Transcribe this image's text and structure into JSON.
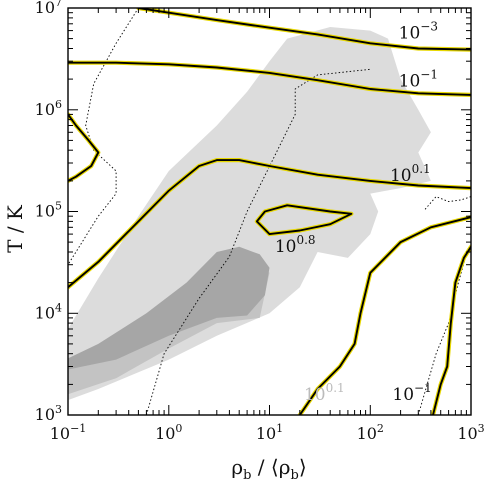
{
  "chart_data": {
    "type": "contour",
    "xlabel_main": "ρ",
    "xlabel_sub": "b",
    "xlabel_sep": " / ",
    "xlabel_open": "⟨",
    "xlabel_close": "⟩",
    "ylabel": "T / K",
    "x_scale": "log",
    "y_scale": "log",
    "xlim": [
      0.1,
      1000
    ],
    "ylim": [
      1000,
      10000000
    ],
    "x_ticks": [
      {
        "value": 0.1,
        "base": "10",
        "exp": "−1"
      },
      {
        "value": 1,
        "base": "10",
        "exp": "0"
      },
      {
        "value": 10,
        "base": "10",
        "exp": "1"
      },
      {
        "value": 100,
        "base": "10",
        "exp": "2"
      },
      {
        "value": 1000,
        "base": "10",
        "exp": "3"
      }
    ],
    "y_ticks": [
      {
        "value": 1000,
        "base": "10",
        "exp": "3"
      },
      {
        "value": 10000,
        "base": "10",
        "exp": "4"
      },
      {
        "value": 100000,
        "base": "10",
        "exp": "5"
      },
      {
        "value": 1000000,
        "base": "10",
        "exp": "6"
      },
      {
        "value": 10000000,
        "base": "10",
        "exp": "7"
      }
    ],
    "grid": false,
    "colors": {
      "contour_line": "#000000",
      "contour_highlight": "#e8d800",
      "fill_light": "#dcdcdc",
      "fill_medium": "#c3c3c3",
      "fill_dark": "#a6a6a6",
      "dotted": "#000000"
    },
    "contour_labels": [
      {
        "base": "10",
        "exp": "−3",
        "x": 300,
        "y": 5000000,
        "shade": "dark"
      },
      {
        "base": "10",
        "exp": "−1",
        "x": 300,
        "y": 1700000,
        "shade": "dark"
      },
      {
        "base": "10",
        "exp": "0.1",
        "x": 250,
        "y": 200000,
        "shade": "dark"
      },
      {
        "base": "10",
        "exp": "0.8",
        "x": 18,
        "y": 40000,
        "shade": "dark"
      },
      {
        "base": "10",
        "exp": "0.1",
        "x": 35,
        "y": 1400,
        "shade": "light"
      },
      {
        "base": "10",
        "exp": "−1",
        "x": 260,
        "y": 1400,
        "shade": "dark"
      }
    ],
    "contours": [
      {
        "name": "level 10^-3",
        "points": [
          [
            0.5,
            10000000
          ],
          [
            1,
            9000000
          ],
          [
            3,
            7600000
          ],
          [
            10,
            6400000
          ],
          [
            30,
            5500000
          ],
          [
            100,
            4500000
          ],
          [
            300,
            4000000
          ],
          [
            1000,
            3900000
          ]
        ]
      },
      {
        "name": "level 10^-1 (upper)",
        "points": [
          [
            0.1,
            2900000
          ],
          [
            0.3,
            2900000
          ],
          [
            1,
            2800000
          ],
          [
            3,
            2600000
          ],
          [
            10,
            2300000
          ],
          [
            30,
            1950000
          ],
          [
            100,
            1600000
          ],
          [
            300,
            1450000
          ],
          [
            1000,
            1400000
          ]
        ]
      },
      {
        "name": "level 10^0.1 (upper)",
        "points": [
          [
            0.1,
            18000
          ],
          [
            0.2,
            32000
          ],
          [
            0.5,
            80000
          ],
          [
            1,
            160000
          ],
          [
            2,
            280000
          ],
          [
            3,
            320000
          ],
          [
            5,
            320000
          ],
          [
            10,
            280000
          ],
          [
            30,
            230000
          ],
          [
            100,
            200000
          ],
          [
            300,
            180000
          ],
          [
            1000,
            170000
          ]
        ]
      },
      {
        "name": "level 10^0.8",
        "points": [
          [
            7.5,
            80000
          ],
          [
            9,
            100000
          ],
          [
            15,
            115000
          ],
          [
            40,
            100000
          ],
          [
            65,
            95000
          ],
          [
            40,
            75000
          ],
          [
            20,
            65000
          ],
          [
            10,
            60000
          ],
          [
            7.5,
            80000
          ]
        ]
      },
      {
        "name": "level 10^0.1 (lower right)",
        "points": [
          [
            20,
            1000
          ],
          [
            30,
            1800
          ],
          [
            50,
            3000
          ],
          [
            70,
            5000
          ],
          [
            80,
            10000
          ],
          [
            100,
            25000
          ],
          [
            200,
            50000
          ],
          [
            400,
            70000
          ],
          [
            1000,
            88000
          ]
        ]
      },
      {
        "name": "level 10^-1 (lower right)",
        "points": [
          [
            420,
            1000
          ],
          [
            500,
            2000
          ],
          [
            580,
            3000
          ],
          [
            630,
            8000
          ],
          [
            700,
            20000
          ],
          [
            850,
            35000
          ],
          [
            1000,
            45000
          ]
        ]
      },
      {
        "name": "level 10^0.1 (left loop)",
        "points": [
          [
            0.1,
            900000
          ],
          [
            0.12,
            700000
          ],
          [
            0.16,
            500000
          ],
          [
            0.2,
            380000
          ],
          [
            0.17,
            280000
          ],
          [
            0.12,
            220000
          ],
          [
            0.1,
            200000
          ]
        ]
      }
    ],
    "dotted_curves": [
      {
        "points": [
          [
            0.5,
            10000000
          ],
          [
            0.3,
            4500000
          ],
          [
            0.18,
            1800000
          ],
          [
            0.15,
            700000
          ],
          [
            0.18,
            400000
          ],
          [
            0.3,
            250000
          ],
          [
            0.3,
            150000
          ],
          [
            0.2,
            90000
          ],
          [
            0.1,
            30000
          ]
        ]
      },
      {
        "points": [
          [
            0.6,
            1000
          ],
          [
            0.9,
            4000
          ],
          [
            2,
            14000
          ],
          [
            4,
            36000
          ],
          [
            6,
            100000
          ],
          [
            12,
            400000
          ],
          [
            18,
            900000
          ],
          [
            18,
            1600000
          ],
          [
            30,
            2200000
          ],
          [
            100,
            2500000
          ]
        ]
      },
      {
        "points": [
          [
            300,
            1000
          ],
          [
            450,
            4000
          ],
          [
            600,
            8000
          ],
          [
            750,
            20000
          ],
          [
            900,
            38000
          ],
          [
            1000,
            45000
          ]
        ]
      },
      {
        "points": [
          [
            350,
            105000
          ],
          [
            450,
            140000
          ],
          [
            600,
            125000
          ],
          [
            800,
            130000
          ],
          [
            1000,
            140000
          ]
        ]
      }
    ],
    "shaded_regions": [
      {
        "shade": "light",
        "points": [
          [
            0.1,
            1400
          ],
          [
            0.2,
            1800
          ],
          [
            1,
            3500
          ],
          [
            3,
            6000
          ],
          [
            10,
            10000
          ],
          [
            20,
            18000
          ],
          [
            30,
            40000
          ],
          [
            60,
            35000
          ],
          [
            100,
            60000
          ],
          [
            120,
            100000
          ],
          [
            100,
            150000
          ],
          [
            200,
            170000
          ],
          [
            400,
            200000
          ],
          [
            300,
            380000
          ],
          [
            400,
            600000
          ],
          [
            300,
            1000000
          ],
          [
            200,
            2000000
          ],
          [
            150,
            5000000
          ],
          [
            100,
            6000000
          ],
          [
            40,
            6500000
          ],
          [
            15,
            5000000
          ],
          [
            10,
            3000000
          ],
          [
            6,
            1500000
          ],
          [
            3,
            700000
          ],
          [
            1,
            250000
          ],
          [
            0.5,
            90000
          ],
          [
            0.2,
            22000
          ],
          [
            0.1,
            7000
          ]
        ]
      },
      {
        "shade": "medium",
        "points": [
          [
            0.1,
            1600
          ],
          [
            0.3,
            2300
          ],
          [
            1,
            4500
          ],
          [
            3,
            8000
          ],
          [
            8,
            9000
          ],
          [
            10,
            25000
          ],
          [
            6,
            35000
          ],
          [
            4,
            30000
          ],
          [
            2,
            15000
          ],
          [
            0.6,
            7000
          ],
          [
            0.1,
            3000
          ]
        ]
      },
      {
        "shade": "dark",
        "points": [
          [
            0.1,
            2800
          ],
          [
            0.3,
            3500
          ],
          [
            1,
            6000
          ],
          [
            3,
            9000
          ],
          [
            6,
            9500
          ],
          [
            9,
            15000
          ],
          [
            10,
            28000
          ],
          [
            8,
            38000
          ],
          [
            5,
            45000
          ],
          [
            3,
            40000
          ],
          [
            1.5,
            20000
          ],
          [
            0.6,
            10000
          ],
          [
            0.2,
            5000
          ],
          [
            0.1,
            3600
          ]
        ]
      }
    ]
  }
}
